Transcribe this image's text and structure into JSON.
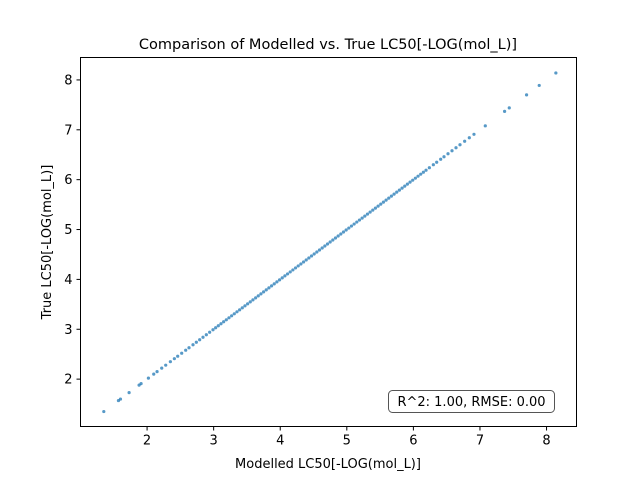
{
  "chart_data": {
    "type": "scatter",
    "title": "Comparison of Modelled vs. True LC50[-LOG(mol_L)]",
    "xlabel": "Modelled LC50[-LOG(mol_L)]",
    "ylabel": "True LC50[-LOG(mol_L)]",
    "xlim": [
      1.0,
      8.45
    ],
    "ylim": [
      1.05,
      8.45
    ],
    "xticks": [
      2,
      3,
      4,
      5,
      6,
      7,
      8
    ],
    "yticks": [
      2,
      3,
      4,
      5,
      6,
      7,
      8
    ],
    "grid": false,
    "annotation": "R^2: 1.00, RMSE: 0.00",
    "annotation_position": "bottom-right",
    "point_color": "#1f77b4",
    "points": [
      [
        1.35,
        1.35
      ],
      [
        1.57,
        1.57
      ],
      [
        1.6,
        1.6
      ],
      [
        1.73,
        1.73
      ],
      [
        1.88,
        1.88
      ],
      [
        1.91,
        1.91
      ],
      [
        2.02,
        2.02
      ],
      [
        2.1,
        2.1
      ],
      [
        2.15,
        2.15
      ],
      [
        2.22,
        2.22
      ],
      [
        2.28,
        2.28
      ],
      [
        2.35,
        2.35
      ],
      [
        2.41,
        2.41
      ],
      [
        2.46,
        2.46
      ],
      [
        2.52,
        2.52
      ],
      [
        2.58,
        2.58
      ],
      [
        2.63,
        2.63
      ],
      [
        2.69,
        2.69
      ],
      [
        2.74,
        2.74
      ],
      [
        2.79,
        2.79
      ],
      [
        2.84,
        2.84
      ],
      [
        2.89,
        2.89
      ],
      [
        2.94,
        2.94
      ],
      [
        2.99,
        2.99
      ],
      [
        3.03,
        3.03
      ],
      [
        3.07,
        3.07
      ],
      [
        3.11,
        3.11
      ],
      [
        3.15,
        3.15
      ],
      [
        3.19,
        3.19
      ],
      [
        3.23,
        3.23
      ],
      [
        3.27,
        3.27
      ],
      [
        3.31,
        3.31
      ],
      [
        3.35,
        3.35
      ],
      [
        3.39,
        3.39
      ],
      [
        3.43,
        3.43
      ],
      [
        3.47,
        3.47
      ],
      [
        3.51,
        3.51
      ],
      [
        3.55,
        3.55
      ],
      [
        3.59,
        3.59
      ],
      [
        3.63,
        3.63
      ],
      [
        3.67,
        3.67
      ],
      [
        3.71,
        3.71
      ],
      [
        3.75,
        3.75
      ],
      [
        3.79,
        3.79
      ],
      [
        3.83,
        3.83
      ],
      [
        3.87,
        3.87
      ],
      [
        3.91,
        3.91
      ],
      [
        3.95,
        3.95
      ],
      [
        3.99,
        3.99
      ],
      [
        4.03,
        4.03
      ],
      [
        4.07,
        4.07
      ],
      [
        4.11,
        4.11
      ],
      [
        4.15,
        4.15
      ],
      [
        4.19,
        4.19
      ],
      [
        4.23,
        4.23
      ],
      [
        4.27,
        4.27
      ],
      [
        4.31,
        4.31
      ],
      [
        4.35,
        4.35
      ],
      [
        4.39,
        4.39
      ],
      [
        4.43,
        4.43
      ],
      [
        4.47,
        4.47
      ],
      [
        4.51,
        4.51
      ],
      [
        4.55,
        4.55
      ],
      [
        4.59,
        4.59
      ],
      [
        4.63,
        4.63
      ],
      [
        4.67,
        4.67
      ],
      [
        4.71,
        4.71
      ],
      [
        4.75,
        4.75
      ],
      [
        4.79,
        4.79
      ],
      [
        4.83,
        4.83
      ],
      [
        4.87,
        4.87
      ],
      [
        4.91,
        4.91
      ],
      [
        4.95,
        4.95
      ],
      [
        4.99,
        4.99
      ],
      [
        5.03,
        5.03
      ],
      [
        5.07,
        5.07
      ],
      [
        5.11,
        5.11
      ],
      [
        5.15,
        5.15
      ],
      [
        5.19,
        5.19
      ],
      [
        5.23,
        5.23
      ],
      [
        5.27,
        5.27
      ],
      [
        5.31,
        5.31
      ],
      [
        5.35,
        5.35
      ],
      [
        5.39,
        5.39
      ],
      [
        5.43,
        5.43
      ],
      [
        5.47,
        5.47
      ],
      [
        5.51,
        5.51
      ],
      [
        5.55,
        5.55
      ],
      [
        5.59,
        5.59
      ],
      [
        5.63,
        5.63
      ],
      [
        5.67,
        5.67
      ],
      [
        5.71,
        5.71
      ],
      [
        5.75,
        5.75
      ],
      [
        5.79,
        5.79
      ],
      [
        5.83,
        5.83
      ],
      [
        5.87,
        5.87
      ],
      [
        5.91,
        5.91
      ],
      [
        5.95,
        5.95
      ],
      [
        5.99,
        5.99
      ],
      [
        6.03,
        6.03
      ],
      [
        6.07,
        6.07
      ],
      [
        6.11,
        6.11
      ],
      [
        6.15,
        6.15
      ],
      [
        6.19,
        6.19
      ],
      [
        6.24,
        6.24
      ],
      [
        6.3,
        6.3
      ],
      [
        6.35,
        6.35
      ],
      [
        6.41,
        6.41
      ],
      [
        6.46,
        6.46
      ],
      [
        6.52,
        6.52
      ],
      [
        6.58,
        6.58
      ],
      [
        6.64,
        6.64
      ],
      [
        6.7,
        6.7
      ],
      [
        6.77,
        6.77
      ],
      [
        6.84,
        6.84
      ],
      [
        6.91,
        6.91
      ],
      [
        7.08,
        7.08
      ],
      [
        7.37,
        7.37
      ],
      [
        7.44,
        7.44
      ],
      [
        7.7,
        7.7
      ],
      [
        7.89,
        7.89
      ],
      [
        8.14,
        8.14
      ]
    ]
  }
}
